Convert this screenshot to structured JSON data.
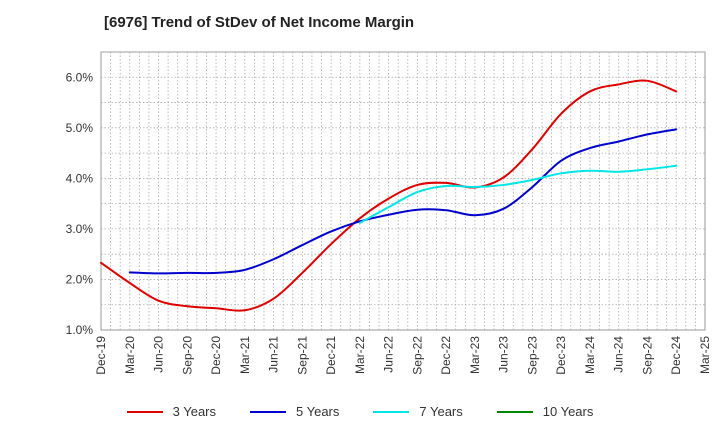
{
  "title": "[6976]  Trend of StDev of Net Income Margin",
  "chart_data": {
    "type": "line",
    "x_labels": [
      "Dec-19",
      "Mar-20",
      "Jun-20",
      "Sep-20",
      "Dec-20",
      "Mar-21",
      "Jun-21",
      "Sep-21",
      "Dec-21",
      "Mar-22",
      "Jun-22",
      "Sep-22",
      "Dec-22",
      "Mar-23",
      "Jun-23",
      "Sep-23",
      "Dec-23",
      "Mar-24",
      "Jun-24",
      "Sep-24",
      "Dec-24",
      "Mar-25"
    ],
    "y_ticks": [
      "1.0%",
      "2.0%",
      "3.0%",
      "4.0%",
      "5.0%",
      "6.0%"
    ],
    "ylim": [
      1.0,
      6.5
    ],
    "grid": true,
    "legend_position": "bottom",
    "series": [
      {
        "name": "3 Years",
        "color": "#dd0000",
        "values": [
          2.33,
          1.93,
          1.58,
          1.47,
          1.43,
          1.39,
          1.62,
          2.13,
          2.7,
          3.21,
          3.6,
          3.87,
          3.91,
          3.82,
          4.02,
          4.58,
          5.28,
          5.72,
          5.86,
          5.93,
          5.72,
          null
        ]
      },
      {
        "name": "5 Years",
        "color": "#0000cc",
        "values": [
          null,
          2.14,
          2.12,
          2.13,
          2.13,
          2.19,
          2.4,
          2.68,
          2.95,
          3.15,
          3.28,
          3.38,
          3.37,
          3.27,
          3.4,
          3.83,
          4.35,
          4.6,
          4.73,
          4.87,
          4.97,
          null
        ]
      },
      {
        "name": "7 Years",
        "color": "#00e5e5",
        "values": [
          null,
          null,
          null,
          null,
          null,
          null,
          null,
          null,
          null,
          3.12,
          3.43,
          3.73,
          3.85,
          3.83,
          3.87,
          3.97,
          4.1,
          4.15,
          4.13,
          4.18,
          4.25,
          null
        ]
      },
      {
        "name": "10 Years",
        "color": "#008800",
        "values": []
      }
    ]
  }
}
